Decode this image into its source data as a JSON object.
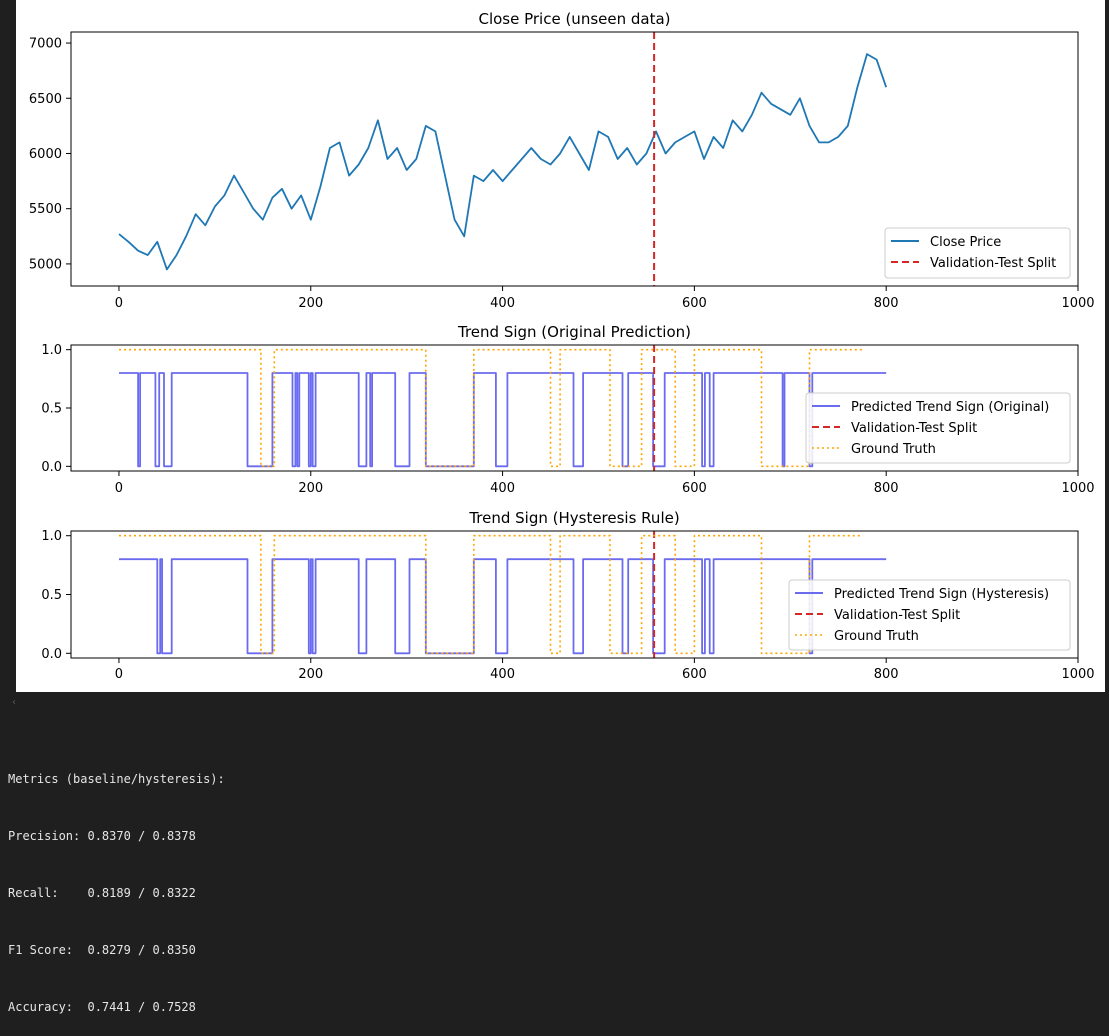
{
  "chart_data": [
    {
      "type": "line",
      "title": "Close Price (unseen data)",
      "xlim": [
        -50,
        1000
      ],
      "ylim": [
        4800,
        7100
      ],
      "xticks": [
        "0",
        "200",
        "400",
        "600",
        "800",
        "1000"
      ],
      "yticks": [
        "5000",
        "5500",
        "6000",
        "6500",
        "7000"
      ],
      "split_x": 558,
      "legend_position": "lower-right",
      "series": [
        {
          "name": "Close Price",
          "color": "#1f77b4",
          "style": "solid",
          "x": [
            0,
            10,
            20,
            30,
            40,
            50,
            60,
            70,
            80,
            90,
            100,
            110,
            120,
            130,
            140,
            150,
            160,
            170,
            180,
            190,
            200,
            210,
            220,
            230,
            240,
            250,
            260,
            270,
            280,
            290,
            300,
            310,
            320,
            330,
            340,
            350,
            360,
            370,
            380,
            390,
            400,
            410,
            420,
            430,
            440,
            450,
            460,
            470,
            480,
            490,
            500,
            510,
            520,
            530,
            540,
            550,
            560,
            570,
            580,
            590,
            600,
            610,
            620,
            630,
            640,
            650,
            660,
            670,
            680,
            690,
            700,
            710,
            720,
            730,
            740,
            750,
            760,
            770,
            780,
            790,
            800
          ],
          "y": [
            5270,
            5200,
            5120,
            5080,
            5200,
            4950,
            5080,
            5250,
            5450,
            5350,
            5520,
            5620,
            5800,
            5650,
            5500,
            5400,
            5600,
            5680,
            5500,
            5620,
            5400,
            5700,
            6050,
            6100,
            5800,
            5900,
            6050,
            6300,
            5950,
            6050,
            5850,
            5950,
            6250,
            6200,
            5800,
            5400,
            5250,
            5800,
            5750,
            5850,
            5750,
            5850,
            5950,
            6050,
            5950,
            5900,
            6000,
            6150,
            6000,
            5850,
            6200,
            6150,
            5950,
            6050,
            5900,
            6000,
            6200,
            6000,
            6100,
            6150,
            6200,
            5950,
            6150,
            6050,
            6300,
            6200,
            6350,
            6550,
            6450,
            6400,
            6350,
            6500,
            6250,
            6100,
            6100,
            6150,
            6250,
            6600,
            6900,
            6850,
            6600
          ]
        },
        {
          "name": "Validation-Test Split",
          "color": "#d62728",
          "style": "dashed"
        }
      ]
    },
    {
      "type": "line",
      "title": "Trend Sign (Original Prediction)",
      "xlim": [
        -50,
        1000
      ],
      "ylim": [
        -0.04,
        1.04
      ],
      "xticks": [
        "0",
        "200",
        "400",
        "600",
        "800",
        "1000"
      ],
      "yticks": [
        "0.0",
        "0.5",
        "1.0"
      ],
      "split_x": 558,
      "legend_position": "lower-right",
      "series": [
        {
          "name": "Predicted Trend Sign (Original)",
          "color": "#6b6bef",
          "style": "solid",
          "segments": [
            [
              0,
              20,
              0.8
            ],
            [
              20,
              22,
              0
            ],
            [
              22,
              38,
              0.8
            ],
            [
              38,
              42,
              0
            ],
            [
              42,
              47,
              0.8
            ],
            [
              47,
              55,
              0
            ],
            [
              55,
              134,
              0.8
            ],
            [
              134,
              160,
              0
            ],
            [
              160,
              181,
              0.8
            ],
            [
              181,
              184,
              0
            ],
            [
              184,
              186,
              0.8
            ],
            [
              186,
              188,
              0
            ],
            [
              188,
              198,
              0.8
            ],
            [
              198,
              200,
              0
            ],
            [
              200,
              202,
              0.8
            ],
            [
              202,
              205,
              0
            ],
            [
              205,
              250,
              0.8
            ],
            [
              250,
              258,
              0
            ],
            [
              258,
              262,
              0.8
            ],
            [
              262,
              264,
              0
            ],
            [
              264,
              288,
              0.8
            ],
            [
              288,
              303,
              0
            ],
            [
              303,
              320,
              0.8
            ],
            [
              320,
              370,
              0
            ],
            [
              370,
              393,
              0.8
            ],
            [
              393,
              405,
              0
            ],
            [
              405,
              474,
              0.8
            ],
            [
              474,
              484,
              0
            ],
            [
              484,
              525,
              0.8
            ],
            [
              525,
              531,
              0
            ],
            [
              531,
              557,
              0.8
            ],
            [
              557,
              569,
              0
            ],
            [
              569,
              608,
              0.8
            ],
            [
              608,
              611,
              0
            ],
            [
              611,
              616,
              0.8
            ],
            [
              616,
              620,
              0
            ],
            [
              620,
              692,
              0.8
            ],
            [
              692,
              694,
              0
            ],
            [
              694,
              720,
              0.8
            ],
            [
              720,
              723,
              0
            ],
            [
              723,
              800,
              0.8
            ]
          ]
        },
        {
          "name": "Validation-Test Split",
          "color": "#d62728",
          "style": "dashed"
        },
        {
          "name": "Ground Truth",
          "color": "#ffa500",
          "style": "dotted",
          "segments": [
            [
              0,
              148,
              1
            ],
            [
              148,
              162,
              0
            ],
            [
              162,
              320,
              1
            ],
            [
              320,
              370,
              0
            ],
            [
              370,
              450,
              1
            ],
            [
              450,
              460,
              0
            ],
            [
              460,
              512,
              1
            ],
            [
              512,
              545,
              0
            ],
            [
              545,
              580,
              1
            ],
            [
              580,
              600,
              0
            ],
            [
              600,
              670,
              1
            ],
            [
              670,
              720,
              0
            ],
            [
              720,
              775,
              1
            ]
          ]
        }
      ]
    },
    {
      "type": "line",
      "title": "Trend Sign (Hysteresis Rule)",
      "xlim": [
        -50,
        1000
      ],
      "ylim": [
        -0.04,
        1.04
      ],
      "xticks": [
        "0",
        "200",
        "400",
        "600",
        "800",
        "1000"
      ],
      "yticks": [
        "0.0",
        "0.5",
        "1.0"
      ],
      "split_x": 558,
      "legend_position": "lower-right",
      "series": [
        {
          "name": "Predicted Trend Sign (Hysteresis)",
          "color": "#6b6bef",
          "style": "solid",
          "segments": [
            [
              0,
              40,
              0.8
            ],
            [
              40,
              43,
              0
            ],
            [
              43,
              45,
              0.8
            ],
            [
              45,
              55,
              0
            ],
            [
              55,
              134,
              0.8
            ],
            [
              134,
              160,
              0
            ],
            [
              160,
              198,
              0.8
            ],
            [
              198,
              200,
              0
            ],
            [
              200,
              202,
              0.8
            ],
            [
              202,
              205,
              0
            ],
            [
              205,
              250,
              0.8
            ],
            [
              250,
              258,
              0
            ],
            [
              258,
              288,
              0.8
            ],
            [
              288,
              303,
              0
            ],
            [
              303,
              320,
              0.8
            ],
            [
              320,
              370,
              0
            ],
            [
              370,
              393,
              0.8
            ],
            [
              393,
              405,
              0
            ],
            [
              405,
              474,
              0.8
            ],
            [
              474,
              484,
              0
            ],
            [
              484,
              525,
              0.8
            ],
            [
              525,
              531,
              0
            ],
            [
              531,
              557,
              0.8
            ],
            [
              557,
              569,
              0
            ],
            [
              569,
              608,
              0.8
            ],
            [
              608,
              611,
              0
            ],
            [
              611,
              616,
              0.8
            ],
            [
              616,
              620,
              0
            ],
            [
              620,
              720,
              0.8
            ],
            [
              720,
              723,
              0
            ],
            [
              723,
              800,
              0.8
            ]
          ]
        },
        {
          "name": "Validation-Test Split",
          "color": "#d62728",
          "style": "dashed"
        },
        {
          "name": "Ground Truth",
          "color": "#ffa500",
          "style": "dotted",
          "segments": [
            [
              0,
              148,
              1
            ],
            [
              148,
              162,
              0
            ],
            [
              162,
              320,
              1
            ],
            [
              320,
              370,
              0
            ],
            [
              370,
              450,
              1
            ],
            [
              450,
              460,
              0
            ],
            [
              460,
              512,
              1
            ],
            [
              512,
              545,
              0
            ],
            [
              545,
              580,
              1
            ],
            [
              580,
              600,
              0
            ],
            [
              600,
              670,
              1
            ],
            [
              670,
              720,
              0
            ],
            [
              720,
              775,
              1
            ]
          ]
        }
      ]
    }
  ],
  "output": {
    "scroll_caret": "‹",
    "lines": [
      "Metrics (baseline/hysteresis):",
      "Precision: 0.8370 / 0.8378",
      "Recall:    0.8189 / 0.8322",
      "F1 Score:  0.8279 / 0.8350",
      "Accuracy:  0.7441 / 0.7528"
    ]
  }
}
